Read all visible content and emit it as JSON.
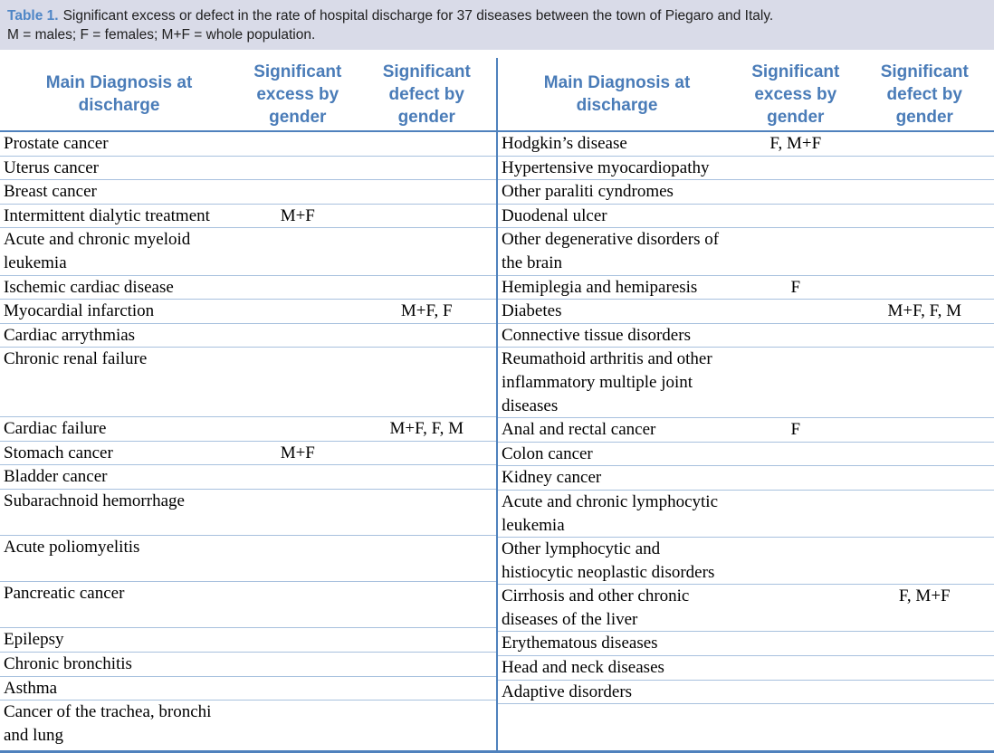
{
  "caption": {
    "label": "Table 1.",
    "line1": "Significant excess or defect in the rate of hospital discharge for 37 diseases between the town of Piegaro and Italy.",
    "line2": "M = males; F = females; M+F = whole population."
  },
  "columns": {
    "diagnosis": "Main Diagnosis at\ndischarge",
    "excess": "Significant\nexcess by\ngender",
    "defect": "Significant\ndefect by\ngender"
  },
  "colors": {
    "accent_blue": "#4f81bd",
    "header_text_blue": "#4a7cb8",
    "row_separator_blue": "#a8c1de",
    "caption_band_bg": "#d9dbe8",
    "caption_label_blue": "#4f86c6"
  },
  "rows": [
    {
      "lines": 1,
      "left": {
        "name": "Prostate cancer",
        "excess": "",
        "defect": ""
      },
      "right": {
        "name": "Hodgkin’s disease",
        "excess": "F, M+F",
        "defect": ""
      }
    },
    {
      "lines": 1,
      "left": {
        "name": "Uterus cancer",
        "excess": "",
        "defect": ""
      },
      "right": {
        "name": "Hypertensive myocardiopathy",
        "excess": "",
        "defect": ""
      }
    },
    {
      "lines": 1,
      "left": {
        "name": "Breast cancer",
        "excess": "",
        "defect": ""
      },
      "right": {
        "name": "Other paraliti cyndromes",
        "excess": "",
        "defect": ""
      }
    },
    {
      "lines": 1,
      "left": {
        "name": "Intermittent dialytic treatment",
        "excess": "M+F",
        "defect": ""
      },
      "right": {
        "name": "Duodenal ulcer",
        "excess": "",
        "defect": ""
      }
    },
    {
      "lines": 2,
      "left": {
        "name": "Acute and chronic myeloid\nleukemia",
        "excess": "",
        "defect": ""
      },
      "right": {
        "name": "Other degenerative disorders of\nthe brain",
        "excess": "",
        "defect": ""
      }
    },
    {
      "lines": 1,
      "left": {
        "name": "Ischemic cardiac disease",
        "excess": "",
        "defect": ""
      },
      "right": {
        "name": "Hemiplegia and hemiparesis",
        "excess": "F",
        "defect": ""
      }
    },
    {
      "lines": 1,
      "left": {
        "name": "Myocardial infarction",
        "excess": "",
        "defect": "M+F, F"
      },
      "right": {
        "name": "Diabetes",
        "excess": "",
        "defect": "M+F, F, M"
      }
    },
    {
      "lines": 1,
      "left": {
        "name": "Cardiac arrythmias",
        "excess": "",
        "defect": ""
      },
      "right": {
        "name": "Connective tissue disorders",
        "excess": "",
        "defect": ""
      }
    },
    {
      "lines": 3,
      "left": {
        "name": "Chronic renal failure",
        "excess": "",
        "defect": ""
      },
      "right": {
        "name": "Reumathoid arthritis and other\ninflammatory  multiple joint\ndiseases",
        "excess": "",
        "defect": ""
      }
    },
    {
      "lines": 1,
      "left": {
        "name": "Cardiac failure",
        "excess": "",
        "defect": "M+F, F, M"
      },
      "right": {
        "name": "Anal and rectal cancer",
        "excess": "F",
        "defect": ""
      }
    },
    {
      "lines": 1,
      "left": {
        "name": "Stomach cancer",
        "excess": "M+F",
        "defect": ""
      },
      "right": {
        "name": "Colon cancer",
        "excess": "",
        "defect": ""
      }
    },
    {
      "lines": 1,
      "left": {
        "name": "Bladder cancer",
        "excess": "",
        "defect": ""
      },
      "right": {
        "name": "Kidney cancer",
        "excess": "",
        "defect": ""
      }
    },
    {
      "lines": 2,
      "left": {
        "name": "Subarachnoid hemorrhage",
        "excess": "",
        "defect": ""
      },
      "right": {
        "name": "Acute and chronic lymphocytic\nleukemia",
        "excess": "",
        "defect": ""
      }
    },
    {
      "lines": 2,
      "left": {
        "name": "Acute poliomyelitis",
        "excess": "",
        "defect": ""
      },
      "right": {
        "name": "Other lymphocytic and\nhistiocytic neoplastic disorders",
        "excess": "",
        "defect": ""
      }
    },
    {
      "lines": 2,
      "left": {
        "name": "Pancreatic cancer",
        "excess": "",
        "defect": ""
      },
      "right": {
        "name": "Cirrhosis and other chronic\ndiseases of the liver",
        "excess": "",
        "defect": "F, M+F"
      }
    },
    {
      "lines": 1,
      "left": {
        "name": "Epilepsy",
        "excess": "",
        "defect": ""
      },
      "right": {
        "name": "Erythematous diseases",
        "excess": "",
        "defect": ""
      }
    },
    {
      "lines": 1,
      "left": {
        "name": "Chronic bronchitis",
        "excess": "",
        "defect": ""
      },
      "right": {
        "name": "Head and neck diseases",
        "excess": "",
        "defect": ""
      }
    },
    {
      "lines": 1,
      "left": {
        "name": "Asthma",
        "excess": "",
        "defect": ""
      },
      "right": {
        "name": "Adaptive disorders",
        "excess": "",
        "defect": ""
      }
    },
    {
      "lines": 2,
      "left": {
        "name": "Cancer of the trachea, bronchi\nand lung",
        "excess": "",
        "defect": ""
      },
      "right": {
        "name": "",
        "excess": "",
        "defect": ""
      }
    }
  ]
}
